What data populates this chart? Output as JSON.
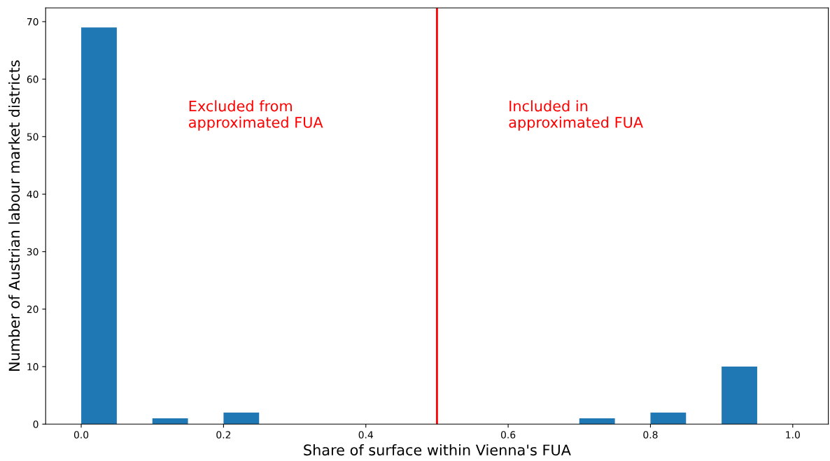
{
  "chart_data": {
    "type": "histogram",
    "xlabel": "Share of surface within Vienna's FUA",
    "ylabel": "Number of Austrian labour market districts",
    "bins": [
      0.0,
      0.05,
      0.1,
      0.15,
      0.2,
      0.25,
      0.3,
      0.35,
      0.4,
      0.45,
      0.5,
      0.55,
      0.6,
      0.65,
      0.7,
      0.75,
      0.8,
      0.85,
      0.9,
      0.95,
      1.0
    ],
    "values": [
      69,
      0,
      1,
      0,
      2,
      0,
      0,
      0,
      0,
      0,
      0,
      0,
      0,
      0,
      1,
      0,
      2,
      0,
      10,
      0
    ],
    "color": "#1f77b4",
    "xlim": [
      -0.05,
      1.05
    ],
    "ylim": [
      0,
      72.4
    ],
    "xticks": [
      {
        "value": 0,
        "label": "0.0"
      },
      0.2,
      0.4,
      0.6,
      0.8,
      {
        "value": 1,
        "label": "1.0"
      }
    ],
    "yticks": [
      0,
      10,
      20,
      30,
      40,
      50,
      60,
      70
    ],
    "ref_lines": [
      {
        "axis": "x",
        "value": 0.5,
        "label": null,
        "color": "#ff0000"
      }
    ],
    "annotations": [
      "Excluded from\napproximated FUA",
      "Included in\napproximated FUA"
    ],
    "grid": false
  }
}
